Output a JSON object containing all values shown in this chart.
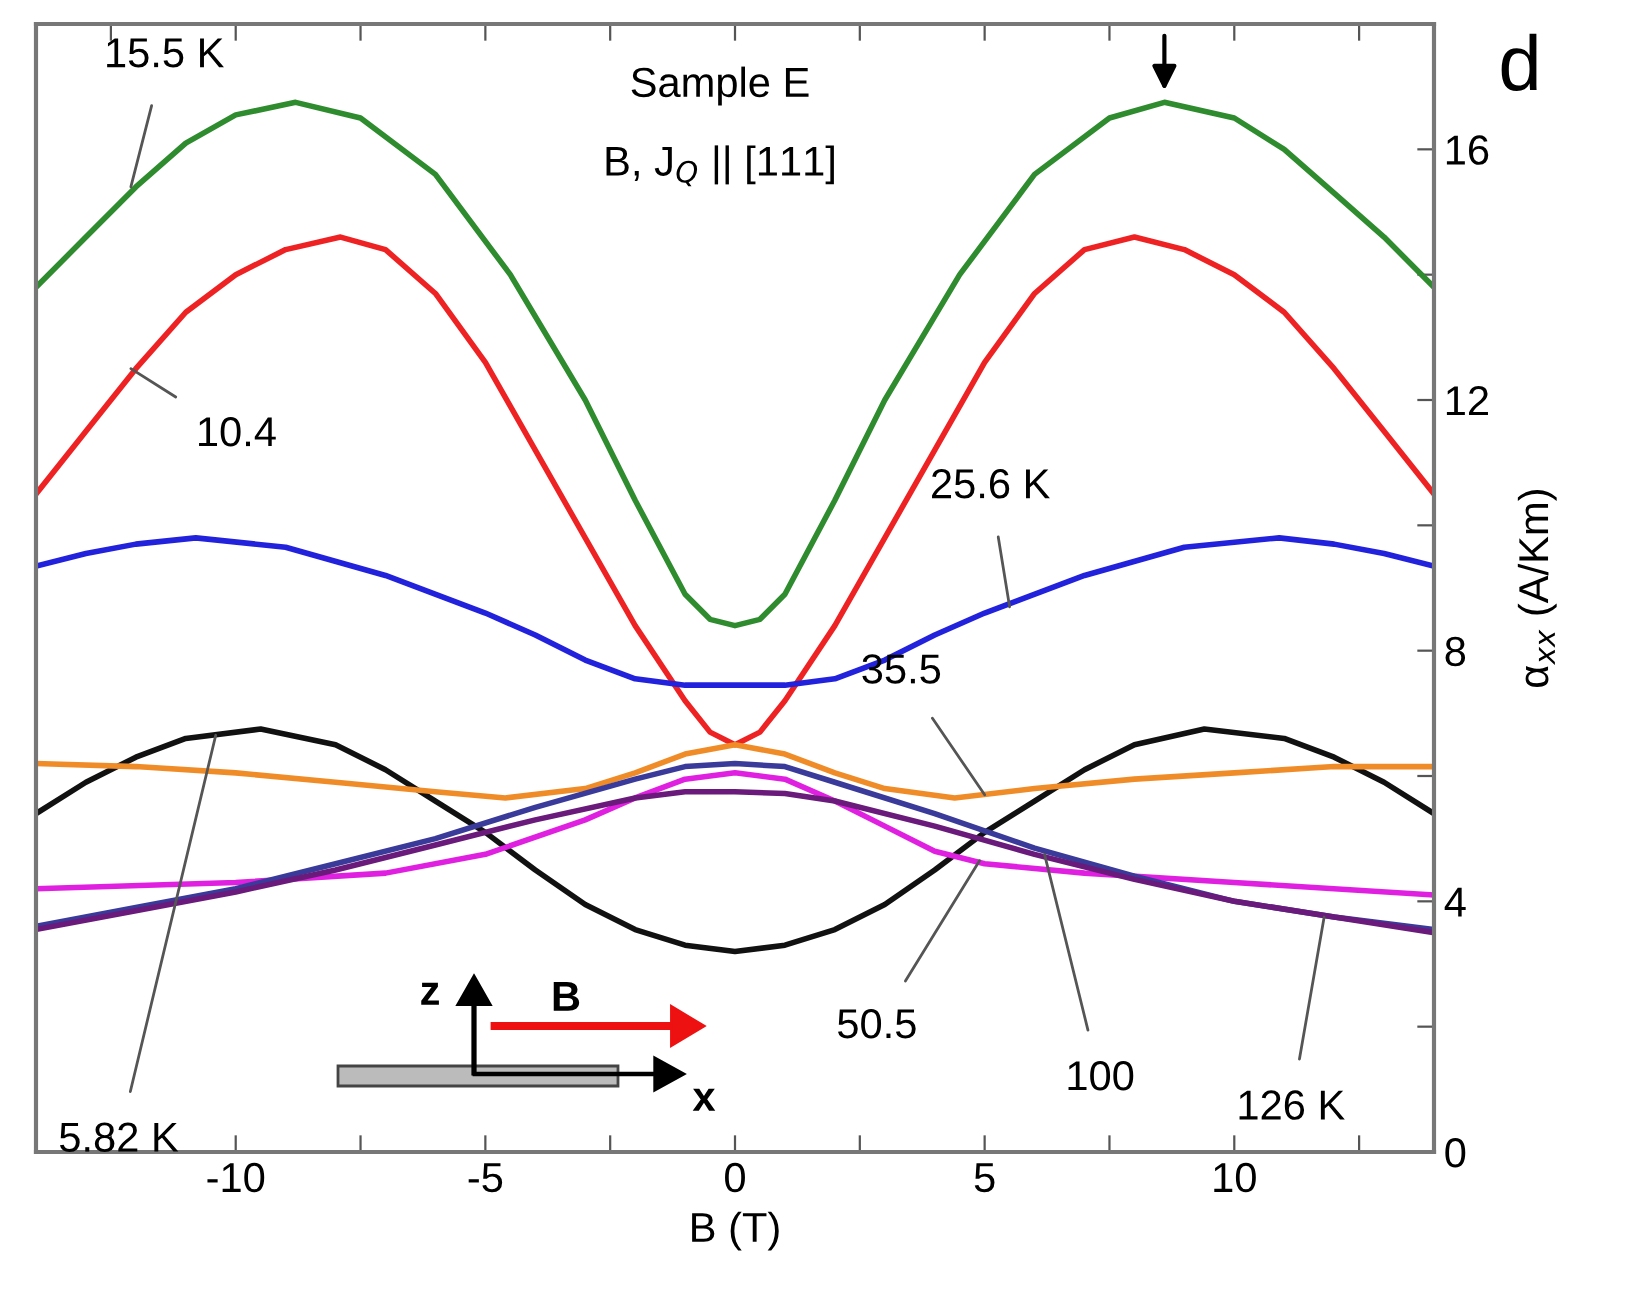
{
  "chart_data": {
    "type": "line",
    "xlabel": "B (T)",
    "ylabel": "α$_{xx}$ (A/Km)",
    "xlim": [
      -14,
      14
    ],
    "ylim": [
      0,
      18
    ],
    "xticks": [
      {
        "value": -12.5,
        "label": null
      },
      -10,
      {
        "value": -7.5,
        "label": null
      },
      -5,
      {
        "value": -2.5,
        "label": null
      },
      0,
      {
        "value": 2.5,
        "label": null
      },
      5,
      {
        "value": 7.5,
        "label": null
      },
      10,
      {
        "value": 12.5,
        "label": null
      }
    ],
    "yticks": [
      0,
      {
        "value": 2,
        "label": null
      },
      4,
      {
        "value": 6,
        "label": null
      },
      8,
      {
        "value": 10,
        "label": null
      },
      12,
      {
        "value": 14,
        "label": null
      },
      16
    ],
    "grid": false,
    "legend": false,
    "marker": "none",
    "line_style": "solid",
    "series": [
      {
        "color": "#2e8b2e",
        "x": [
          -14,
          -13,
          -12,
          -11,
          -10,
          -8.8,
          -7.5,
          -6,
          -4.5,
          -3,
          -2,
          -1,
          -0.5,
          0,
          0.5,
          1,
          2,
          3,
          4.5,
          6,
          7.5,
          8.6,
          10,
          11,
          12,
          13,
          14
        ],
        "values": [
          13.8,
          14.6,
          15.4,
          16.1,
          16.55,
          16.75,
          16.5,
          15.6,
          14.0,
          12.0,
          10.4,
          8.9,
          8.5,
          8.4,
          8.5,
          8.9,
          10.4,
          12.0,
          14.0,
          15.6,
          16.5,
          16.75,
          16.5,
          16.0,
          15.3,
          14.6,
          13.8
        ]
      },
      {
        "color": "#ee2222",
        "x": [
          -14,
          -13,
          -12,
          -11,
          -10,
          -9,
          -7.9,
          -7,
          -6,
          -5,
          -4,
          -3,
          -2,
          -1,
          -0.5,
          0,
          0.5,
          1,
          2,
          3,
          4,
          5,
          6,
          7,
          8,
          9,
          10,
          11,
          12,
          13,
          14
        ],
        "values": [
          10.5,
          11.5,
          12.5,
          13.4,
          14.0,
          14.4,
          14.6,
          14.4,
          13.7,
          12.6,
          11.2,
          9.8,
          8.4,
          7.2,
          6.7,
          6.5,
          6.7,
          7.2,
          8.4,
          9.8,
          11.2,
          12.6,
          13.7,
          14.4,
          14.6,
          14.4,
          14.0,
          13.4,
          12.5,
          11.5,
          10.5
        ]
      },
      {
        "color": "#2222dd",
        "x": [
          -14,
          -13,
          -12,
          -10.8,
          -9,
          -7,
          -5,
          -4,
          -3,
          -2,
          -1,
          0,
          1,
          2,
          3,
          4,
          5,
          7,
          9,
          10.9,
          12,
          13,
          14
        ],
        "values": [
          9.35,
          9.55,
          9.7,
          9.8,
          9.65,
          9.2,
          8.6,
          8.25,
          7.85,
          7.55,
          7.45,
          7.45,
          7.45,
          7.55,
          7.85,
          8.25,
          8.6,
          9.2,
          9.65,
          9.8,
          9.7,
          9.55,
          9.35
        ]
      },
      {
        "color": "#111111",
        "x": [
          -14,
          -13,
          -12,
          -11,
          -9.5,
          -8,
          -7,
          -6,
          -5,
          -4,
          -3,
          -2,
          -1,
          0,
          1,
          2,
          3,
          4,
          5,
          6,
          7,
          8,
          9.4,
          11,
          12,
          13,
          14
        ],
        "values": [
          5.4,
          5.9,
          6.3,
          6.6,
          6.75,
          6.5,
          6.1,
          5.6,
          5.1,
          4.5,
          3.95,
          3.55,
          3.3,
          3.2,
          3.3,
          3.55,
          3.95,
          4.5,
          5.1,
          5.6,
          6.1,
          6.5,
          6.75,
          6.6,
          6.3,
          5.9,
          5.4
        ]
      },
      {
        "color": "#f08c28",
        "x": [
          -14,
          -12,
          -10,
          -8,
          -6,
          -4.6,
          -3,
          -2,
          -1,
          0,
          1,
          2,
          3,
          4.4,
          6,
          8,
          10,
          12,
          14
        ],
        "values": [
          6.2,
          6.15,
          6.05,
          5.9,
          5.75,
          5.65,
          5.8,
          6.05,
          6.35,
          6.5,
          6.35,
          6.05,
          5.8,
          5.65,
          5.8,
          5.95,
          6.05,
          6.15,
          6.15
        ]
      },
      {
        "color": "#e020e0",
        "x": [
          -14,
          -10,
          -7,
          -5,
          -3,
          -2,
          -1,
          0,
          1,
          2,
          3,
          4,
          5,
          7,
          10,
          14
        ],
        "values": [
          4.2,
          4.3,
          4.45,
          4.75,
          5.3,
          5.65,
          5.95,
          6.05,
          5.95,
          5.6,
          5.2,
          4.8,
          4.6,
          4.45,
          4.3,
          4.1
        ]
      },
      {
        "color": "#3a3a9a",
        "x": [
          -14,
          -12,
          -10,
          -8,
          -6,
          -4,
          -2,
          -1,
          0,
          1,
          2,
          4,
          6,
          8,
          10,
          12,
          14
        ],
        "values": [
          3.6,
          3.9,
          4.2,
          4.6,
          5.0,
          5.5,
          5.95,
          6.15,
          6.2,
          6.15,
          5.9,
          5.4,
          4.85,
          4.4,
          4.0,
          3.75,
          3.55
        ]
      },
      {
        "color": "#6a1a7a",
        "x": [
          -14,
          -12,
          -10,
          -8,
          -6,
          -4,
          -2,
          -1,
          0,
          1,
          2,
          4,
          6,
          8,
          10,
          12,
          14
        ],
        "values": [
          3.55,
          3.85,
          4.15,
          4.5,
          4.9,
          5.3,
          5.65,
          5.75,
          5.75,
          5.72,
          5.6,
          5.2,
          4.75,
          4.35,
          4.0,
          3.75,
          3.5
        ]
      }
    ],
    "annotations": [
      "Sample E",
      "B, J$_{Q}$ || [111]",
      "d",
      "z",
      "B",
      "x",
      {
        "text": "15.5 K",
        "x": -12.1,
        "y": 15.4
      },
      {
        "text": "10.4",
        "x": -12.1,
        "y": 12.5
      },
      {
        "text": "25.6 K",
        "x": 5.5,
        "y": 8.7
      },
      {
        "text": "5.82 K",
        "x": -10.4,
        "y": 6.65
      },
      {
        "text": "35.5",
        "x": 5.0,
        "y": 5.7
      },
      {
        "text": "50.5",
        "x": 4.9,
        "y": 4.65
      },
      {
        "text": "100",
        "x": 6.2,
        "y": 4.75
      },
      {
        "text": "126 K",
        "x": 11.8,
        "y": 3.75
      }
    ]
  }
}
